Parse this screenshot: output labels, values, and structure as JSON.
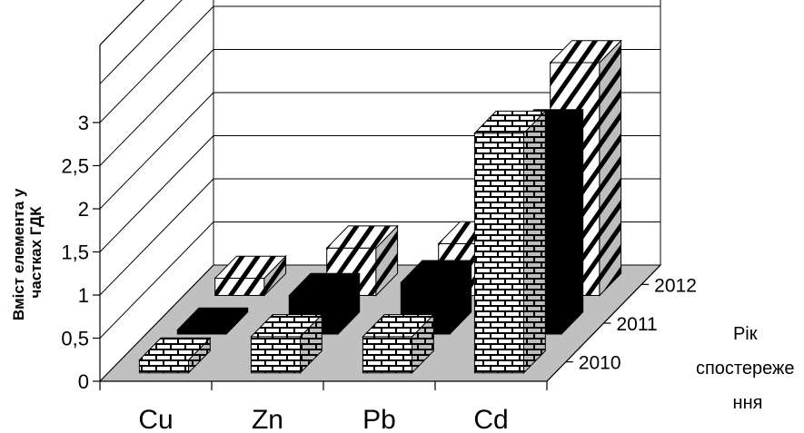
{
  "chart_data": {
    "type": "bar",
    "style": "3d-clustered-depth",
    "categories": [
      "Cu",
      "Zn",
      "Pb",
      "Cd"
    ],
    "series": [
      {
        "name": "2010",
        "values": [
          0.15,
          0.42,
          0.42,
          2.78
        ],
        "pattern": "brick"
      },
      {
        "name": "2011",
        "values": [
          0.05,
          0.45,
          0.6,
          2.35
        ],
        "pattern": "solid-black"
      },
      {
        "name": "2012",
        "values": [
          0.2,
          0.55,
          0.6,
          2.7
        ],
        "pattern": "diagonal-stripes"
      }
    ],
    "ylabel": "Вміст елемента у частках ГДК",
    "zlabel": "Рік спостереже ння",
    "ylim": [
      0,
      3
    ],
    "yticks": [
      "0",
      "0,5",
      "1",
      "1,5",
      "2",
      "2,5",
      "3"
    ],
    "grid": true,
    "floor_color": "#c0c0c0"
  }
}
